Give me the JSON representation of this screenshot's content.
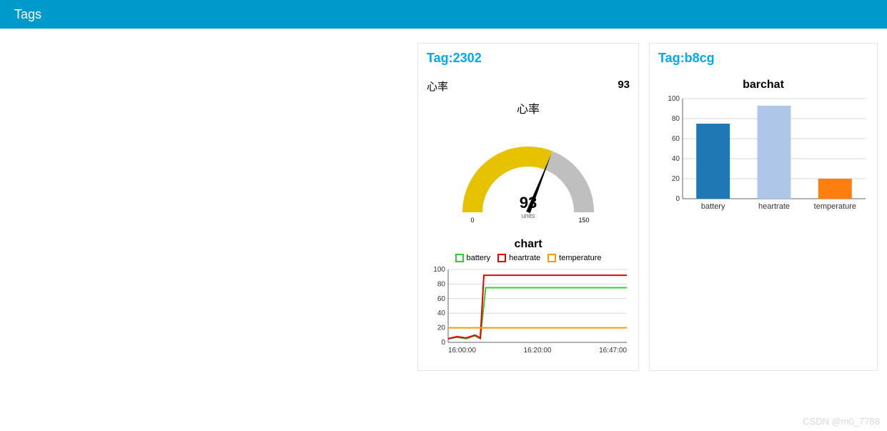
{
  "header": {
    "title": "Tags"
  },
  "watermark": "CSDN @m0_7788",
  "panel1": {
    "title": "Tag:2302",
    "stat_label": "心率",
    "stat_value": "93",
    "gauge": {
      "title": "心率",
      "value": 93,
      "value_text": "93",
      "units": "units",
      "min": 0,
      "min_label": "0",
      "max": 150,
      "max_label": "150",
      "arc_color": "#e6c200",
      "track_color": "#bfbfbf",
      "needle_color": "#000000",
      "arc_width": 28,
      "label_fontsize": 9
    },
    "linechart": {
      "title": "chart",
      "ylim": [
        0,
        100
      ],
      "yticks": [
        0,
        20,
        40,
        60,
        80,
        100
      ],
      "xticks": [
        "16:00:00",
        "16:20:00",
        "16:47:00"
      ],
      "grid_color": "#d9d9d9",
      "axis_color": "#666666",
      "series": [
        {
          "name": "battery",
          "color": "#33cc33",
          "points": [
            [
              0,
              5
            ],
            [
              0.05,
              7
            ],
            [
              0.1,
              5
            ],
            [
              0.15,
              9
            ],
            [
              0.18,
              5
            ],
            [
              0.21,
              75
            ],
            [
              1.0,
              75
            ]
          ]
        },
        {
          "name": "heartrate",
          "color": "#e60000",
          "points": [
            [
              0,
              5
            ],
            [
              0.05,
              8
            ],
            [
              0.1,
              6
            ],
            [
              0.15,
              10
            ],
            [
              0.18,
              6
            ],
            [
              0.2,
              92
            ],
            [
              1.0,
              92
            ]
          ]
        },
        {
          "name": "temperature",
          "color": "#ff9900",
          "points": [
            [
              0,
              20
            ],
            [
              1.0,
              20
            ]
          ]
        }
      ]
    }
  },
  "panel2": {
    "title": "Tag:b8cg",
    "barchart": {
      "title": "barchat",
      "ylim": [
        0,
        100
      ],
      "yticks": [
        0,
        20,
        40,
        60,
        80,
        100
      ],
      "grid_color": "#d9d9d9",
      "axis_color": "#666666",
      "bars": [
        {
          "label": "battery",
          "value": 75,
          "color": "#1f77b4"
        },
        {
          "label": "heartrate",
          "value": 93,
          "color": "#aec7e8"
        },
        {
          "label": "temperature",
          "value": 20,
          "color": "#ff7f0e"
        }
      ]
    }
  }
}
